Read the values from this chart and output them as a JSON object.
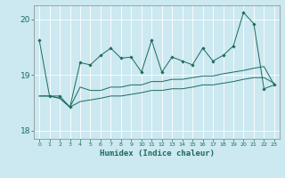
{
  "xlabel": "Humidex (Indice chaleur)",
  "bg_color": "#cce8f0",
  "grid_color": "#ffffff",
  "line_color": "#1a6b5a",
  "xlim": [
    -0.5,
    23.5
  ],
  "ylim": [
    17.85,
    20.25
  ],
  "yticks": [
    18,
    19,
    20
  ],
  "xticks": [
    0,
    1,
    2,
    3,
    4,
    5,
    6,
    7,
    8,
    9,
    10,
    11,
    12,
    13,
    14,
    15,
    16,
    17,
    18,
    19,
    20,
    21,
    22,
    23
  ],
  "series": [
    {
      "y": [
        19.62,
        18.62,
        18.62,
        18.42,
        19.22,
        19.18,
        19.35,
        19.48,
        19.3,
        19.32,
        19.05,
        19.62,
        19.05,
        19.32,
        19.25,
        19.18,
        19.48,
        19.25,
        19.35,
        19.52,
        20.12,
        19.92,
        18.75,
        18.82
      ],
      "marker": true
    },
    {
      "y": [
        18.62,
        18.62,
        18.58,
        18.42,
        18.78,
        18.72,
        18.72,
        18.78,
        18.78,
        18.82,
        18.82,
        18.88,
        18.88,
        18.92,
        18.92,
        18.95,
        18.98,
        18.98,
        19.02,
        19.05,
        19.08,
        19.12,
        19.15,
        18.82
      ],
      "marker": false
    },
    {
      "y": [
        18.62,
        18.62,
        18.58,
        18.42,
        18.52,
        18.55,
        18.58,
        18.62,
        18.62,
        18.65,
        18.68,
        18.72,
        18.72,
        18.75,
        18.75,
        18.78,
        18.82,
        18.82,
        18.85,
        18.88,
        18.92,
        18.95,
        18.95,
        18.85
      ],
      "marker": false
    }
  ]
}
